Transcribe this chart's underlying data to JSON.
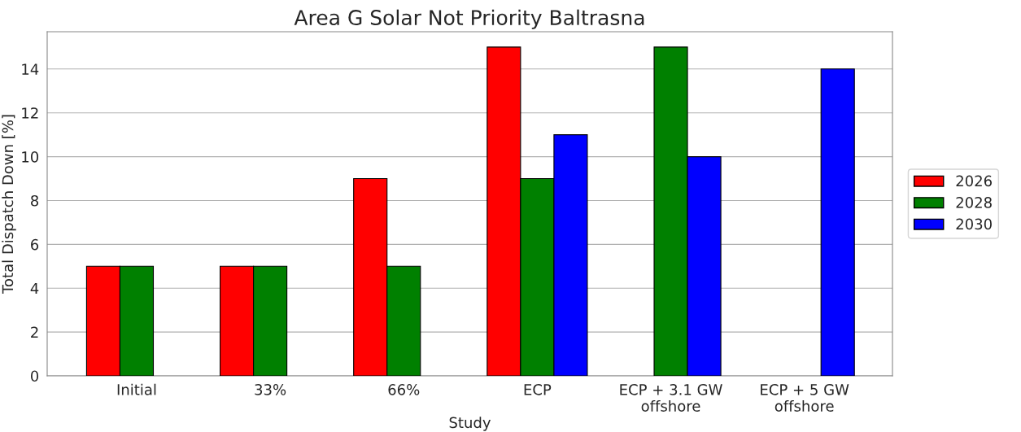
{
  "chart_data": {
    "type": "bar",
    "title": "Area G Solar Not Priority Baltrasna",
    "xlabel": "Study",
    "ylabel": "Total Dispatch Down [%]",
    "categories": [
      "Initial",
      "33%",
      "66%",
      "ECP",
      "ECP + 3.1 GW\noffshore",
      "ECP + 5 GW\noffshore"
    ],
    "series": [
      {
        "name": "2026",
        "color": "#ff0000",
        "values": [
          5,
          5,
          9,
          15,
          null,
          null
        ]
      },
      {
        "name": "2028",
        "color": "#008000",
        "values": [
          5,
          5,
          5,
          9,
          15,
          null
        ]
      },
      {
        "name": "2030",
        "color": "#0000ff",
        "values": [
          null,
          null,
          null,
          11,
          10,
          14
        ]
      }
    ],
    "ylim": [
      0,
      15.7
    ],
    "yticks": [
      0,
      2,
      4,
      6,
      8,
      10,
      12,
      14
    ],
    "grid": "y",
    "legend": "right"
  }
}
